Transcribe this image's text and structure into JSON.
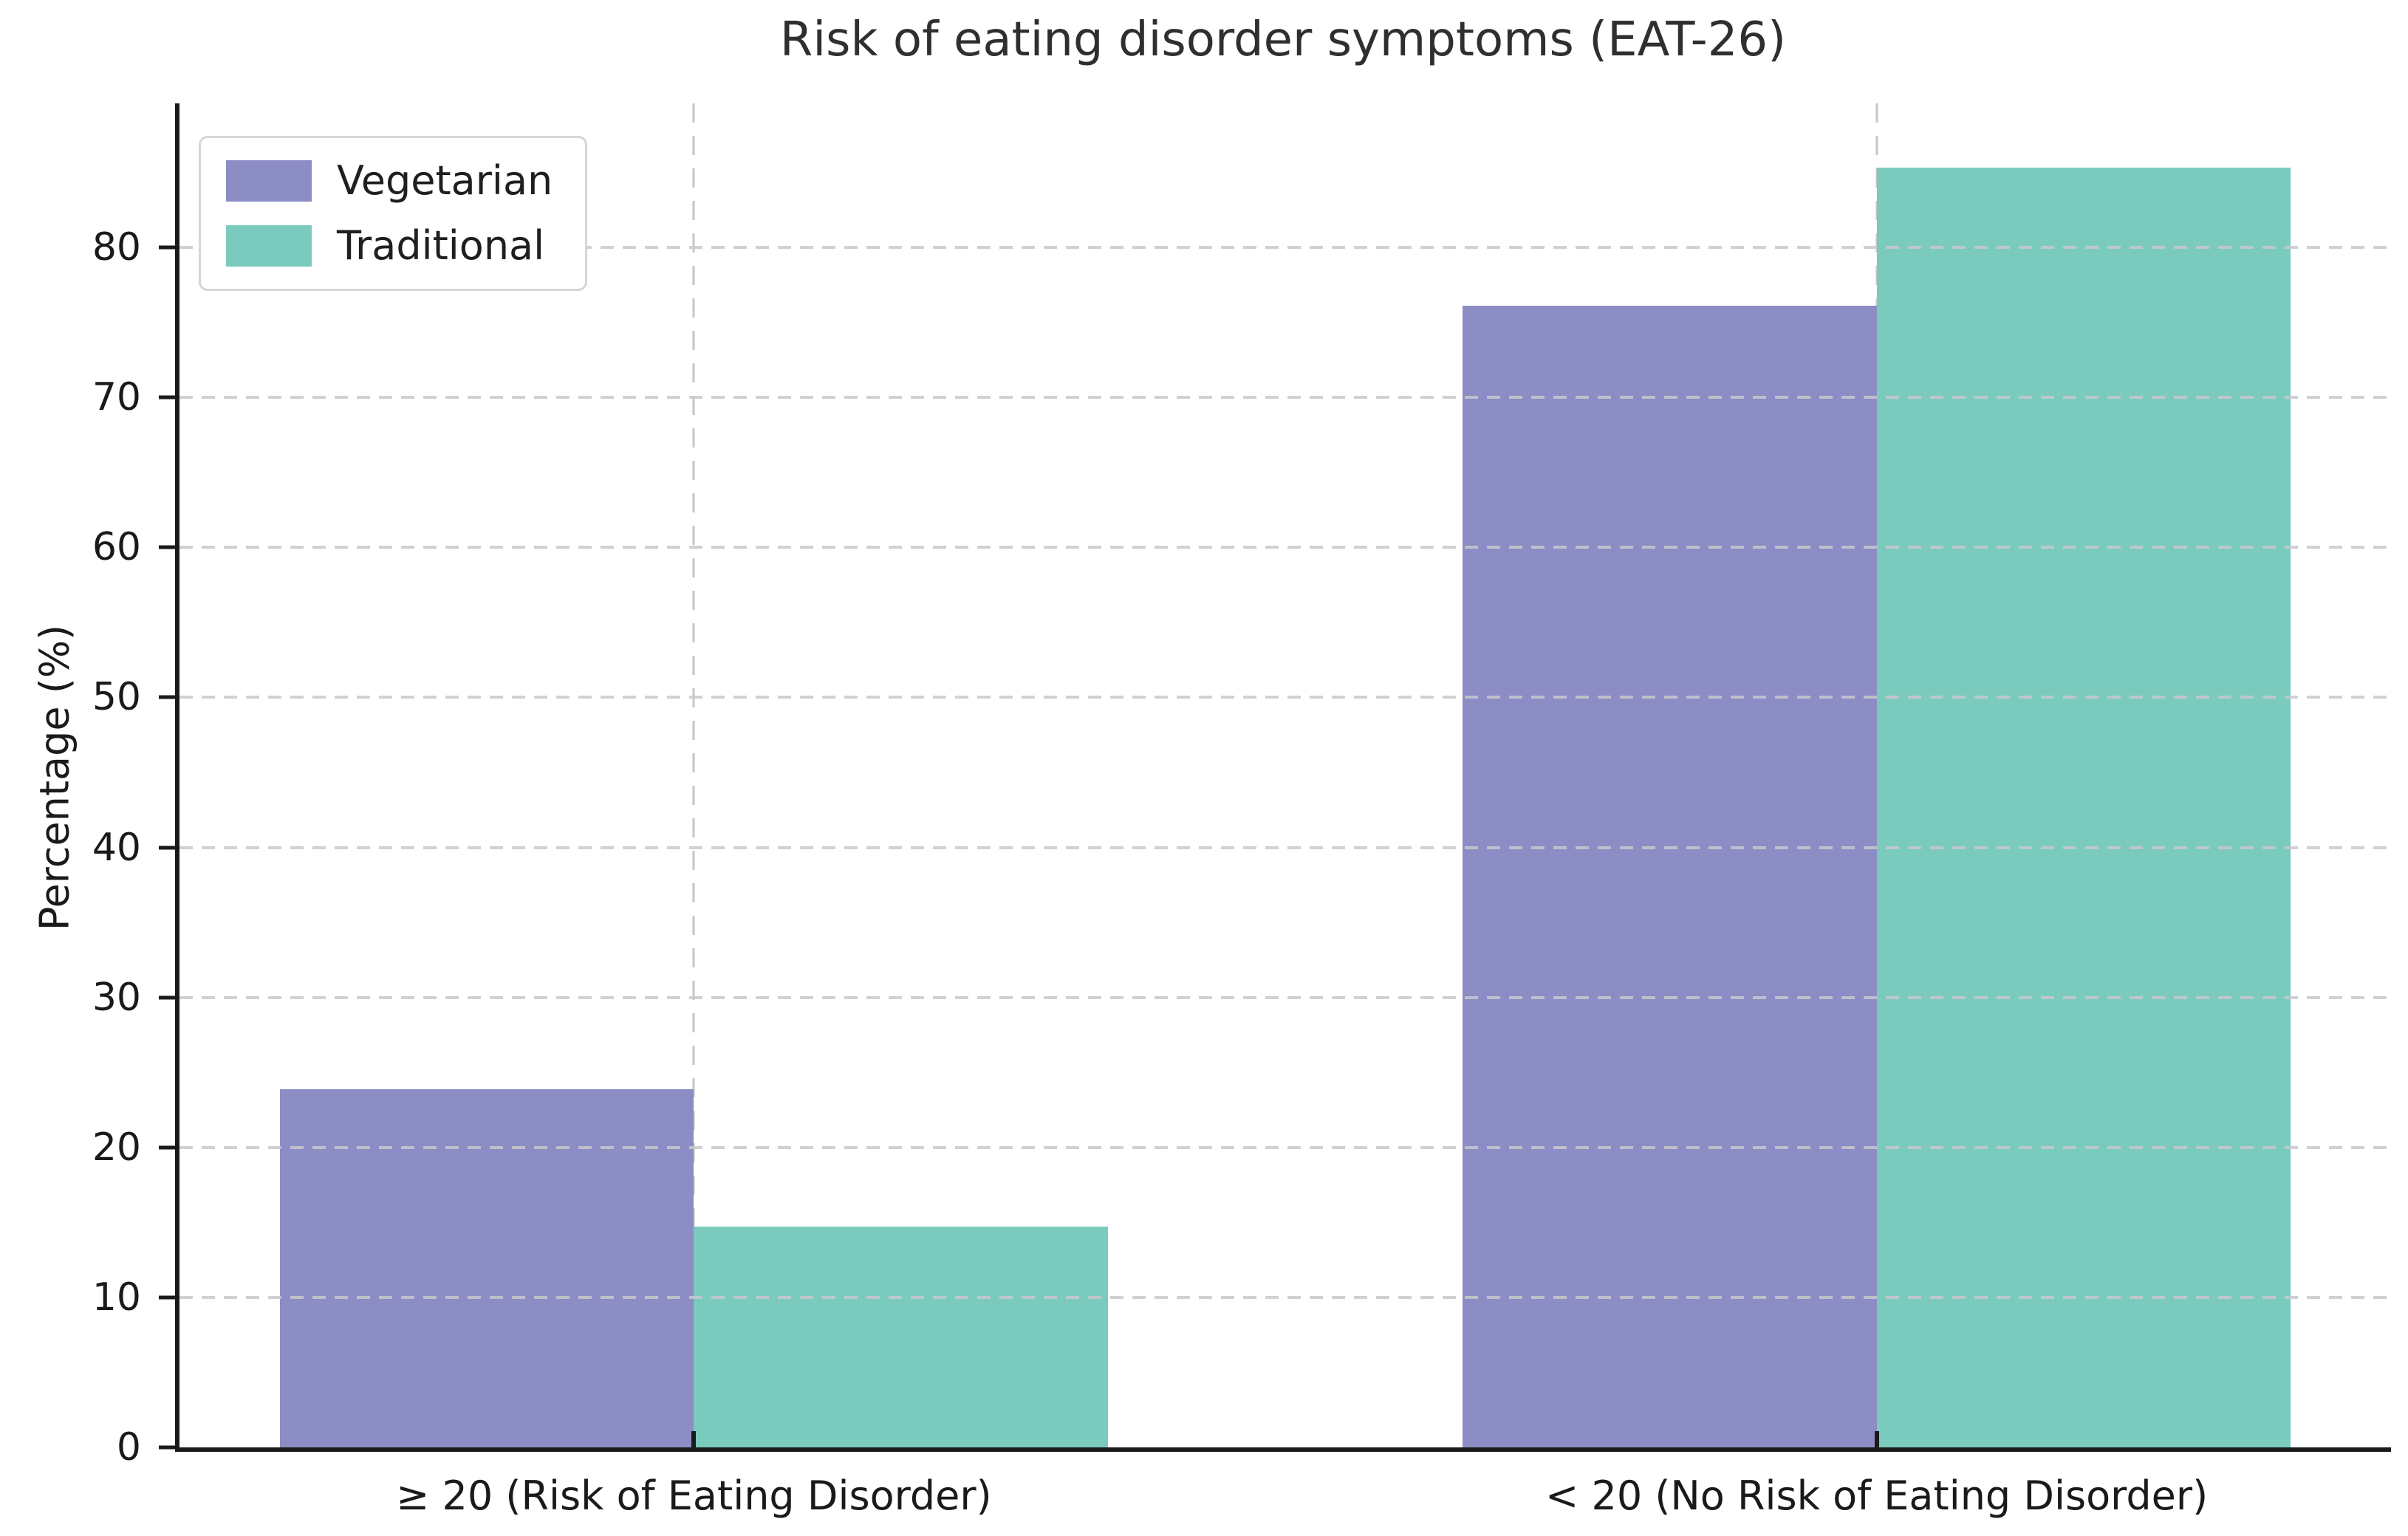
{
  "chart_data": {
    "type": "bar",
    "title": "Risk of eating disorder symptoms (EAT-26)",
    "xlabel": "",
    "ylabel": "Percentage (%)",
    "categories": [
      "≥ 20 (Risk of Eating Disorder)",
      "< 20 (No Risk of Eating Disorder)"
    ],
    "series": [
      {
        "name": "Vegetarian",
        "color": "#8c8dc4",
        "values": [
          23.9,
          76.1
        ]
      },
      {
        "name": "Traditional",
        "color": "#7acbbe",
        "values": [
          14.7,
          85.3
        ]
      }
    ],
    "yticks": [
      0,
      10,
      20,
      30,
      40,
      50,
      60,
      70,
      80
    ],
    "ylim": [
      0,
      89.6
    ],
    "grid": true,
    "grid_style": "dashed",
    "legend_position": "upper left",
    "colors": {
      "spine": "#1a1a1a",
      "gridline": "#c9c9c9",
      "text": "#1a1a1a",
      "title_text": "#2f2f2f",
      "legend_border": "#d6d6d6"
    }
  }
}
